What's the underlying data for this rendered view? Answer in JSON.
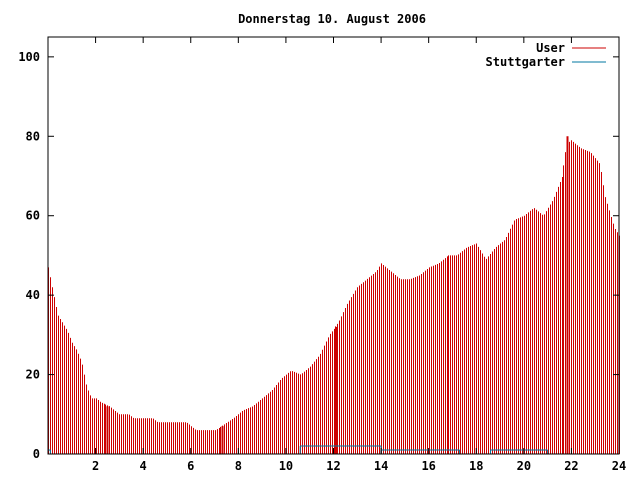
{
  "chart_data": {
    "type": "bar",
    "title": "Donnerstag 10. August 2006",
    "xlabel": "",
    "ylabel": "",
    "xlim": [
      0,
      24
    ],
    "ylim": [
      0,
      105
    ],
    "xticks": [
      2,
      4,
      6,
      8,
      10,
      12,
      14,
      16,
      18,
      20,
      22,
      24
    ],
    "yticks": [
      0,
      20,
      40,
      60,
      80,
      100
    ],
    "grid": false,
    "legend_position": "top-right",
    "series": [
      {
        "name": "User",
        "color": "#cc0000",
        "knots": [
          [
            0.0,
            47
          ],
          [
            0.2,
            41
          ],
          [
            0.4,
            35
          ],
          [
            0.6,
            33
          ],
          [
            0.8,
            31
          ],
          [
            1.0,
            28
          ],
          [
            1.2,
            26
          ],
          [
            1.4,
            23
          ],
          [
            1.6,
            17
          ],
          [
            1.8,
            14
          ],
          [
            2.0,
            14
          ],
          [
            2.2,
            13
          ],
          [
            2.6,
            12
          ],
          [
            2.8,
            11
          ],
          [
            3.0,
            10
          ],
          [
            3.4,
            10
          ],
          [
            3.6,
            9
          ],
          [
            4.4,
            9
          ],
          [
            4.6,
            8
          ],
          [
            5.8,
            8
          ],
          [
            6.0,
            7
          ],
          [
            6.2,
            6
          ],
          [
            7.0,
            6
          ],
          [
            7.3,
            7
          ],
          [
            7.8,
            9
          ],
          [
            8.2,
            11
          ],
          [
            8.6,
            12
          ],
          [
            9.0,
            14
          ],
          [
            9.4,
            16
          ],
          [
            9.8,
            19
          ],
          [
            10.2,
            21
          ],
          [
            10.6,
            20
          ],
          [
            11.0,
            22
          ],
          [
            11.4,
            25
          ],
          [
            11.8,
            30
          ],
          [
            12.2,
            33
          ],
          [
            12.6,
            38
          ],
          [
            13.0,
            42
          ],
          [
            13.4,
            44
          ],
          [
            13.8,
            46
          ],
          [
            14.0,
            48
          ],
          [
            14.4,
            46
          ],
          [
            14.8,
            44
          ],
          [
            15.2,
            44
          ],
          [
            15.6,
            45
          ],
          [
            16.0,
            47
          ],
          [
            16.4,
            48
          ],
          [
            16.8,
            50
          ],
          [
            17.2,
            50
          ],
          [
            17.6,
            52
          ],
          [
            18.0,
            53
          ],
          [
            18.4,
            49
          ],
          [
            18.8,
            52
          ],
          [
            19.2,
            54
          ],
          [
            19.6,
            59
          ],
          [
            20.0,
            60
          ],
          [
            20.4,
            62
          ],
          [
            20.8,
            60
          ],
          [
            21.2,
            64
          ],
          [
            21.6,
            70
          ],
          [
            21.8,
            78
          ],
          [
            22.0,
            79
          ],
          [
            22.4,
            77
          ],
          [
            22.8,
            76
          ],
          [
            23.2,
            73
          ],
          [
            23.4,
            65
          ],
          [
            23.6,
            61
          ],
          [
            23.8,
            57
          ],
          [
            24.0,
            55
          ]
        ],
        "peaks": [
          [
            2.5,
            12
          ],
          [
            7.3,
            7
          ],
          [
            12.1,
            32
          ],
          [
            21.8,
            80
          ]
        ]
      },
      {
        "name": "Stuttgarter",
        "color": "#0077a0",
        "segments": [
          [
            0.0,
            0.1,
            1
          ],
          [
            10.6,
            14.0,
            2
          ],
          [
            14.0,
            17.3,
            1
          ],
          [
            18.6,
            21.0,
            1
          ]
        ]
      }
    ]
  }
}
